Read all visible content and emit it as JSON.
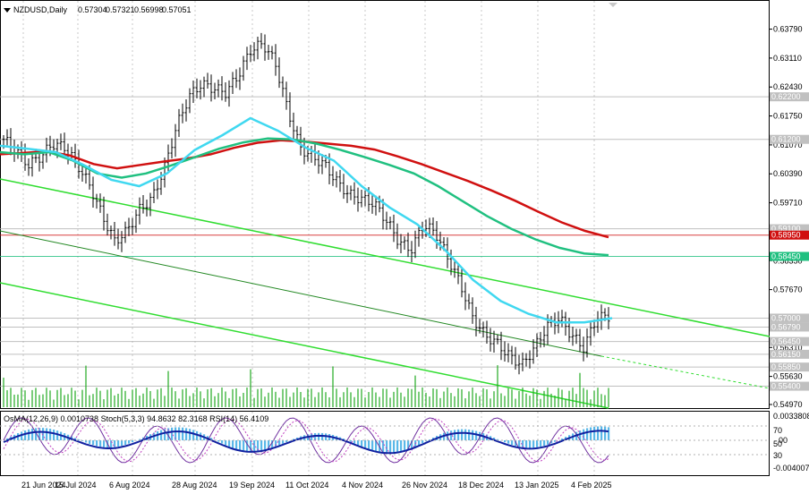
{
  "header": {
    "symbol": "NZDUSD,Daily",
    "open": "0.57304",
    "high": "0.57321",
    "low": "0.56998",
    "close": "0.57051"
  },
  "indicators_label": "OsMA(12,26,9) 0.0010738 Stoch(5,3,3) 94.8632 82.3168 RSI(14) 56.4109",
  "chart_data": {
    "type": "line",
    "title": "",
    "price_axis": {
      "ylim": [
        0.5497,
        0.6397
      ],
      "ticks": [
        "0.63790",
        "0.63110",
        "0.62430",
        "0.61750",
        "0.61070",
        "0.60390",
        "0.59710",
        "0.59030",
        "0.58350",
        "0.57670",
        "0.56990",
        "0.56310",
        "0.55630",
        "0.54970"
      ]
    },
    "level_labels": [
      {
        "value": 0.622,
        "text": "0.62200",
        "color": "#c0c0c0"
      },
      {
        "value": 0.612,
        "text": "0.61200",
        "color": "#c0c0c0"
      },
      {
        "value": 0.591,
        "text": "0.59100",
        "color": "#c0c0c0"
      },
      {
        "value": 0.5895,
        "text": "0.58950",
        "color": "#d01010"
      },
      {
        "value": 0.5845,
        "text": "0.58450",
        "color": "#20c080"
      },
      {
        "value": 0.57,
        "text": "0.57000",
        "color": "#c0c0c0"
      },
      {
        "value": 0.5679,
        "text": "0.56790",
        "color": "#c0c0c0"
      },
      {
        "value": 0.5645,
        "text": "0.56450",
        "color": "#c0c0c0"
      },
      {
        "value": 0.5615,
        "text": "0.56150",
        "color": "#c0c0c0"
      },
      {
        "value": 0.5585,
        "text": "0.55850",
        "color": "#c0c0c0"
      },
      {
        "value": 0.554,
        "text": "0.55400",
        "color": "#c0c0c0"
      }
    ],
    "x_labels": [
      "21 Jun 2024",
      "15 Jul 2024",
      "6 Aug 2024",
      "28 Aug 2024",
      "19 Sep 2024",
      "11 Oct 2024",
      "4 Nov 2024",
      "26 Nov 2024",
      "18 Dec 2024",
      "13 Jan 2025",
      "4 Feb 2025"
    ],
    "close_series": [
      0.612,
      0.6095,
      0.606,
      0.608,
      0.611,
      0.61,
      0.606,
      0.601,
      0.594,
      0.588,
      0.5905,
      0.5955,
      0.598,
      0.605,
      0.615,
      0.622,
      0.625,
      0.624,
      0.623,
      0.627,
      0.633,
      0.6345,
      0.63,
      0.619,
      0.61,
      0.608,
      0.606,
      0.602,
      0.599,
      0.598,
      0.597,
      0.593,
      0.588,
      0.586,
      0.592,
      0.59,
      0.584,
      0.578,
      0.57,
      0.566,
      0.564,
      0.561,
      0.559,
      0.563,
      0.568,
      0.57,
      0.566,
      0.563,
      0.57,
      0.5705
    ],
    "series": [
      {
        "values": [
          0.6085,
          0.6088,
          0.6092,
          0.6082,
          0.6062,
          0.6052,
          0.606,
          0.6068,
          0.6075,
          0.6085,
          0.61,
          0.6112,
          0.6118,
          0.6115,
          0.611,
          0.6105,
          0.6096,
          0.608,
          0.6062,
          0.6042,
          0.6022,
          0.6,
          0.5976,
          0.595,
          0.5925,
          0.5905,
          0.589
        ],
        "color": "#d01010"
      },
      {
        "values": [
          0.609,
          0.6085,
          0.609,
          0.607,
          0.604,
          0.603,
          0.604,
          0.6058,
          0.6078,
          0.6098,
          0.6113,
          0.6122,
          0.612,
          0.611,
          0.6095,
          0.6078,
          0.606,
          0.604,
          0.601,
          0.5975,
          0.594,
          0.591,
          0.5885,
          0.5865,
          0.5852,
          0.5848
        ],
        "color": "#20c080"
      },
      {
        "values": [
          0.6105,
          0.6098,
          0.609,
          0.606,
          0.6025,
          0.601,
          0.604,
          0.6095,
          0.613,
          0.617,
          0.614,
          0.61,
          0.607,
          0.601,
          0.596,
          0.592,
          0.586,
          0.579,
          0.574,
          0.571,
          0.569,
          0.569,
          0.57
        ],
        "color": "#40d8f0"
      }
    ]
  }
}
